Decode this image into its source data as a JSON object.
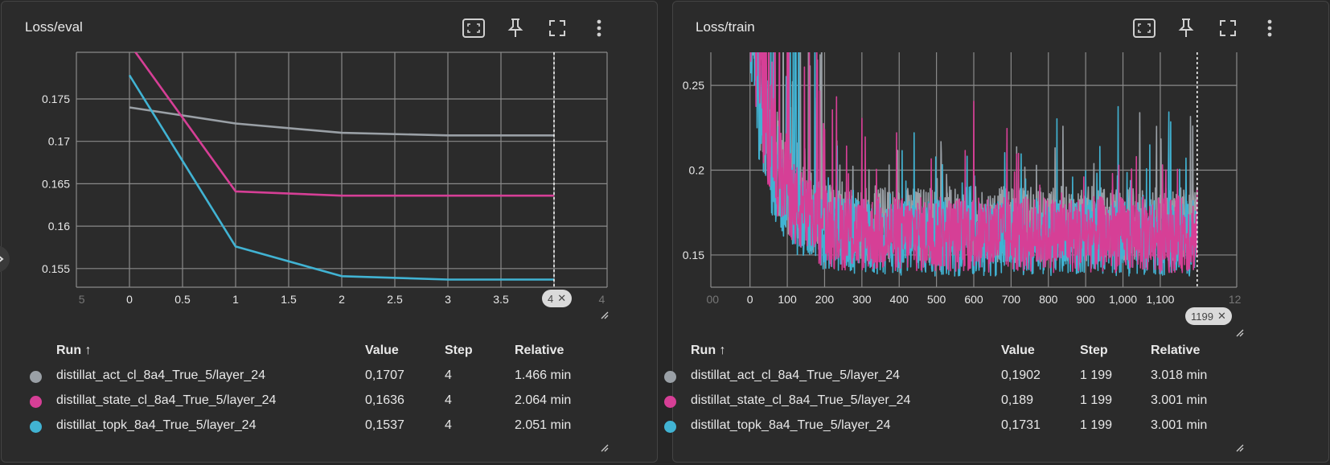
{
  "cards": [
    {
      "title": "Loss/eval",
      "badge": "4",
      "headers": {
        "run": "Run ↑",
        "value": "Value",
        "step": "Step",
        "relative": "Relative"
      },
      "rows": [
        {
          "run": "distillat_act_cl_8a4_True_5/layer_24",
          "value": "0,1707",
          "step": "4",
          "relative": "1.466 min"
        },
        {
          "run": "distillat_state_cl_8a4_True_5/layer_24",
          "value": "0,1636",
          "step": "4",
          "relative": "2.064 min"
        },
        {
          "run": "distillat_topk_8a4_True_5/layer_24",
          "value": "0,1537",
          "step": "4",
          "relative": "2.051 min"
        }
      ]
    },
    {
      "title": "Loss/train",
      "badge": "1199",
      "headers": {
        "run": "Run ↑",
        "value": "Value",
        "step": "Step",
        "relative": "Relative"
      },
      "rows": [
        {
          "run": "distillat_act_cl_8a4_True_5/layer_24",
          "value": "0,1902",
          "step": "1 199",
          "relative": "3.018 min"
        },
        {
          "run": "distillat_state_cl_8a4_True_5/layer_24",
          "value": "0,189",
          "step": "1 199",
          "relative": "3.001 min"
        },
        {
          "run": "distillat_topk_8a4_True_5/layer_24",
          "value": "0,1731",
          "step": "1 199",
          "relative": "3.001 min"
        }
      ]
    }
  ],
  "colors": {
    "act": "#9aa0a6",
    "state": "#d63f96",
    "topk": "#41b3d3",
    "grid": "#8a8a8a",
    "text": "#e8e8e8"
  },
  "icons": [
    "fit-to-data-icon",
    "pin-icon",
    "fullscreen-icon",
    "more-vert-icon"
  ],
  "chart_data": [
    {
      "type": "line",
      "title": "Loss/eval",
      "xlabel": "",
      "ylabel": "",
      "xlim": [
        -0.5,
        4.5
      ],
      "ylim": [
        0.1528,
        0.1805
      ],
      "x_ticks": [
        "5",
        "0",
        "0.5",
        "1",
        "1.5",
        "2",
        "2.5",
        "3",
        "3.5",
        "4",
        "4"
      ],
      "y_ticks": [
        "0.155",
        "0.16",
        "0.165",
        "0.17",
        "0.175"
      ],
      "y_tick_values": [
        0.155,
        0.16,
        0.165,
        0.17,
        0.175
      ],
      "x_tick_values": [
        0,
        0.5,
        1,
        1.5,
        2,
        2.5,
        3,
        3.5,
        4
      ],
      "grid": true,
      "series": [
        {
          "name": "distillat_act_cl_8a4_True_5/layer_24",
          "color_key": "act",
          "x": [
            0,
            1,
            2,
            3,
            4
          ],
          "y": [
            0.174,
            0.1721,
            0.171,
            0.1707,
            0.1707
          ]
        },
        {
          "name": "distillat_state_cl_8a4_True_5/layer_24",
          "color_key": "state",
          "x": [
            0,
            1,
            2,
            3,
            4
          ],
          "y": [
            0.1815,
            0.1641,
            0.1636,
            0.1636,
            0.1636
          ]
        },
        {
          "name": "distillat_topk_8a4_True_5/layer_24",
          "color_key": "topk",
          "x": [
            0,
            1,
            2,
            3,
            4
          ],
          "y": [
            0.1778,
            0.1576,
            0.1541,
            0.1537,
            0.1537
          ]
        }
      ]
    },
    {
      "type": "line",
      "title": "Loss/train",
      "xlabel": "",
      "ylabel": "",
      "xlim": [
        -105,
        1305
      ],
      "ylim": [
        0.131,
        0.2695
      ],
      "x_ticks": [
        "00",
        "0",
        "100",
        "200",
        "300",
        "400",
        "500",
        "600",
        "700",
        "800",
        "900",
        "1,000",
        "1,100",
        "12"
      ],
      "x_tick_values": [
        0,
        100,
        200,
        300,
        400,
        500,
        600,
        700,
        800,
        900,
        1000,
        1100
      ],
      "y_ticks": [
        "0.15",
        "0.2",
        "0.25"
      ],
      "y_tick_values": [
        0.15,
        0.2,
        0.25
      ],
      "grid": true,
      "n_steps": 1200,
      "series": [
        {
          "name": "distillat_act_cl_8a4_True_5/layer_24",
          "color_key": "act",
          "final": 0.1902,
          "plateau": 0.168,
          "start": 0.31
        },
        {
          "name": "distillat_topk_8a4_True_5/layer_24",
          "color_key": "topk",
          "final": 0.1731,
          "plateau": 0.16,
          "start": 0.3
        },
        {
          "name": "distillat_state_cl_8a4_True_5/layer_24",
          "color_key": "state",
          "final": 0.189,
          "plateau": 0.162,
          "start": 0.32
        }
      ]
    }
  ]
}
